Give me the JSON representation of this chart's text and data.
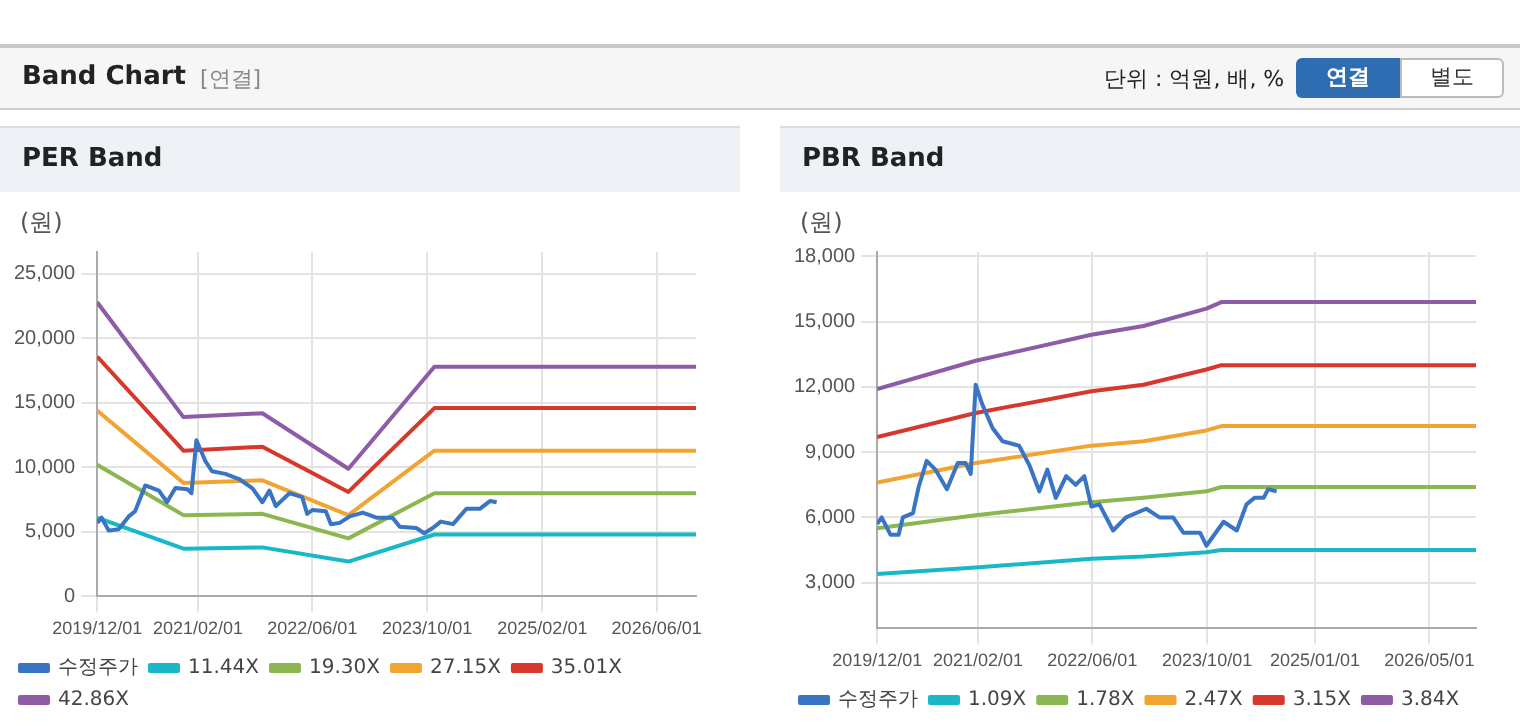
{
  "chart_data": [
    {
      "type": "line",
      "title": "PER Band",
      "ylabel": "(원)",
      "annotations": [
        "Band Chart",
        "[연결]",
        "단위 : 억원, 배, %",
        "연결",
        "별도"
      ],
      "xlim": [
        "2019-12-01",
        "2026-11-15"
      ],
      "xticks": [
        {
          "value": "2019-12-01",
          "label": "2019/12/01"
        },
        {
          "value": "2021-02-01",
          "label": "2021/02/01"
        },
        {
          "value": "2022-06-01",
          "label": "2022/06/01"
        },
        {
          "value": "2023-10-01",
          "label": "2023/10/01"
        },
        {
          "value": "2025-02-01",
          "label": "2025/02/01"
        },
        {
          "value": "2026-06-01",
          "label": "2026/06/01"
        }
      ],
      "ylim": [
        0,
        26700
      ],
      "yticks": [
        0,
        {
          "value": 5000,
          "label": "5,000"
        },
        {
          "value": 10000,
          "label": "10,000"
        },
        {
          "value": 15000,
          "label": "15,000"
        },
        {
          "value": 20000,
          "label": "20,000"
        },
        {
          "value": 25000,
          "label": "25,000"
        }
      ],
      "grid": true,
      "legend": "bottom",
      "marker": "none",
      "line_style": "solid",
      "series": [
        {
          "name": "수정주가",
          "color": "#3a74c4",
          "x": [
            "2019-12-01",
            "2019-12-20",
            "2020-01-19",
            "2020-03-01",
            "2020-04-13",
            "2020-05-10",
            "2020-06-22",
            "2020-08-19",
            "2020-09-22",
            "2020-10-28",
            "2020-12-19",
            "2021-01-04",
            "2021-01-25",
            "2021-03-04",
            "2021-04-01",
            "2021-05-28",
            "2021-07-25",
            "2021-09-19",
            "2021-11-01",
            "2021-12-01",
            "2021-12-28",
            "2022-02-24",
            "2022-04-19",
            "2022-05-10",
            "2022-06-01",
            "2022-07-28",
            "2022-08-19",
            "2022-09-25",
            "2022-11-07",
            "2023-01-01",
            "2023-02-28",
            "2023-05-07",
            "2023-06-07",
            "2023-08-16",
            "2023-09-19",
            "2023-10-25",
            "2023-11-28",
            "2024-01-19",
            "2024-03-16",
            "2024-05-13",
            "2024-06-25",
            "2024-07-22"
          ],
          "values": [
            5700,
            6100,
            5100,
            5200,
            6200,
            6600,
            8600,
            8200,
            7300,
            8400,
            8300,
            8000,
            12100,
            10500,
            9700,
            9500,
            9100,
            8400,
            7300,
            8200,
            7000,
            8000,
            7700,
            6400,
            6700,
            6600,
            5600,
            5700,
            6200,
            6500,
            6100,
            6100,
            5400,
            5300,
            4900,
            5300,
            5800,
            5600,
            6800,
            6800,
            7400,
            7300
          ]
        },
        {
          "name": "11.44X",
          "color": "#19b8c8",
          "x": [
            "2019-12-01",
            "2020-12-01",
            "2021-11-01",
            "2022-11-01",
            "2023-11-01",
            "2026-11-15"
          ],
          "values": [
            6100,
            3700,
            3800,
            2700,
            4800,
            4800
          ]
        },
        {
          "name": "19.30X",
          "color": "#8bb650",
          "x": [
            "2019-12-01",
            "2020-12-01",
            "2021-11-01",
            "2022-11-01",
            "2023-11-01",
            "2026-11-15"
          ],
          "values": [
            10200,
            6300,
            6400,
            4500,
            8000,
            8000
          ]
        },
        {
          "name": "27.15X",
          "color": "#f2a433",
          "x": [
            "2019-12-01",
            "2020-12-01",
            "2021-11-01",
            "2022-11-01",
            "2023-11-01",
            "2026-11-15"
          ],
          "values": [
            14400,
            8800,
            9000,
            6300,
            11300,
            11300
          ]
        },
        {
          "name": "35.01X",
          "color": "#d6382c",
          "x": [
            "2019-12-01",
            "2020-12-01",
            "2021-11-01",
            "2022-11-01",
            "2023-11-01",
            "2026-11-15"
          ],
          "values": [
            18600,
            11300,
            11600,
            8100,
            14600,
            14600
          ]
        },
        {
          "name": "42.86X",
          "color": "#8e5ba6",
          "x": [
            "2019-12-01",
            "2020-12-01",
            "2021-11-01",
            "2022-11-01",
            "2023-11-01",
            "2026-11-15"
          ],
          "values": [
            22800,
            13900,
            14200,
            9900,
            17800,
            17800
          ]
        }
      ]
    },
    {
      "type": "line",
      "title": "PBR Band",
      "ylabel": "(원)",
      "xlim": [
        "2019-12-01",
        "2026-11-15"
      ],
      "xticks": [
        {
          "value": "2019-12-01",
          "label": "2019/12/01"
        },
        {
          "value": "2021-02-01",
          "label": "2021/02/01"
        },
        {
          "value": "2022-06-01",
          "label": "2022/06/01"
        },
        {
          "value": "2023-10-01",
          "label": "2023/10/01"
        },
        {
          "value": "2025-01-01",
          "label": "2025/01/01"
        },
        {
          "value": "2026-05-01",
          "label": "2026/05/01"
        }
      ],
      "ylim": [
        900,
        18200
      ],
      "yticks": [
        {
          "value": 3000,
          "label": "3,000"
        },
        {
          "value": 6000,
          "label": "6,000"
        },
        {
          "value": 9000,
          "label": "9,000"
        },
        {
          "value": 12000,
          "label": "12,000"
        },
        {
          "value": 15000,
          "label": "15,000"
        },
        {
          "value": 18000,
          "label": "18,000"
        }
      ],
      "grid": true,
      "legend": "bottom",
      "marker": "none",
      "line_style": "solid",
      "series": [
        {
          "name": "수정주가",
          "color": "#3a74c4",
          "x": [
            "2019-12-01",
            "2019-12-20",
            "2020-01-27",
            "2020-03-01",
            "2020-03-19",
            "2020-05-01",
            "2020-05-25",
            "2020-06-28",
            "2020-08-04",
            "2020-09-22",
            "2020-11-07",
            "2020-12-10",
            "2021-01-01",
            "2021-01-22",
            "2021-02-19",
            "2021-04-04",
            "2021-05-16",
            "2021-07-25",
            "2021-09-07",
            "2021-10-19",
            "2021-11-22",
            "2021-12-28",
            "2022-02-10",
            "2022-03-22",
            "2022-04-28",
            "2022-05-28",
            "2022-07-01",
            "2022-08-28",
            "2022-10-22",
            "2023-01-16",
            "2023-03-13",
            "2023-05-10",
            "2023-06-22",
            "2023-09-01",
            "2023-09-28",
            "2023-12-10",
            "2024-02-04",
            "2024-03-16",
            "2024-04-19",
            "2024-05-28",
            "2024-06-16",
            "2024-07-22"
          ],
          "values": [
            5700,
            6000,
            5200,
            5200,
            6000,
            6200,
            7400,
            8600,
            8200,
            7300,
            8500,
            8500,
            8000,
            12100,
            11200,
            10100,
            9500,
            9300,
            8400,
            7200,
            8200,
            6900,
            7900,
            7500,
            7900,
            6500,
            6600,
            5400,
            6000,
            6400,
            6000,
            6000,
            5300,
            5300,
            4700,
            5800,
            5400,
            6600,
            6900,
            6900,
            7300,
            7200
          ]
        },
        {
          "name": "1.09X",
          "color": "#19b8c8",
          "x": [
            "2019-12-01",
            "2021-01-22",
            "2022-05-28",
            "2023-01-04",
            "2023-09-28",
            "2023-12-01",
            "2026-11-15"
          ],
          "values": [
            3400,
            3700,
            4100,
            4200,
            4400,
            4500,
            4500
          ]
        },
        {
          "name": "1.78X",
          "color": "#8bb650",
          "x": [
            "2019-12-01",
            "2021-01-22",
            "2022-05-28",
            "2023-01-04",
            "2023-09-28",
            "2023-12-01",
            "2026-11-15"
          ],
          "values": [
            5500,
            6100,
            6700,
            6900,
            7200,
            7400,
            7400
          ]
        },
        {
          "name": "2.47X",
          "color": "#f2a433",
          "x": [
            "2019-12-01",
            "2021-01-22",
            "2022-05-28",
            "2023-01-04",
            "2023-09-28",
            "2023-12-01",
            "2026-11-15"
          ],
          "values": [
            7600,
            8500,
            9300,
            9500,
            10000,
            10200,
            10200
          ]
        },
        {
          "name": "3.15X",
          "color": "#d6382c",
          "x": [
            "2019-12-01",
            "2021-01-22",
            "2022-05-28",
            "2023-01-04",
            "2023-09-28",
            "2023-12-01",
            "2026-11-15"
          ],
          "values": [
            9700,
            10800,
            11800,
            12100,
            12800,
            13000,
            13000
          ]
        },
        {
          "name": "3.84X",
          "color": "#8e5ba6",
          "x": [
            "2019-12-01",
            "2021-01-22",
            "2022-05-28",
            "2023-01-04",
            "2023-09-28",
            "2023-12-01",
            "2026-11-15"
          ],
          "values": [
            11900,
            13200,
            14400,
            14800,
            15600,
            15900,
            15900
          ]
        }
      ]
    }
  ]
}
